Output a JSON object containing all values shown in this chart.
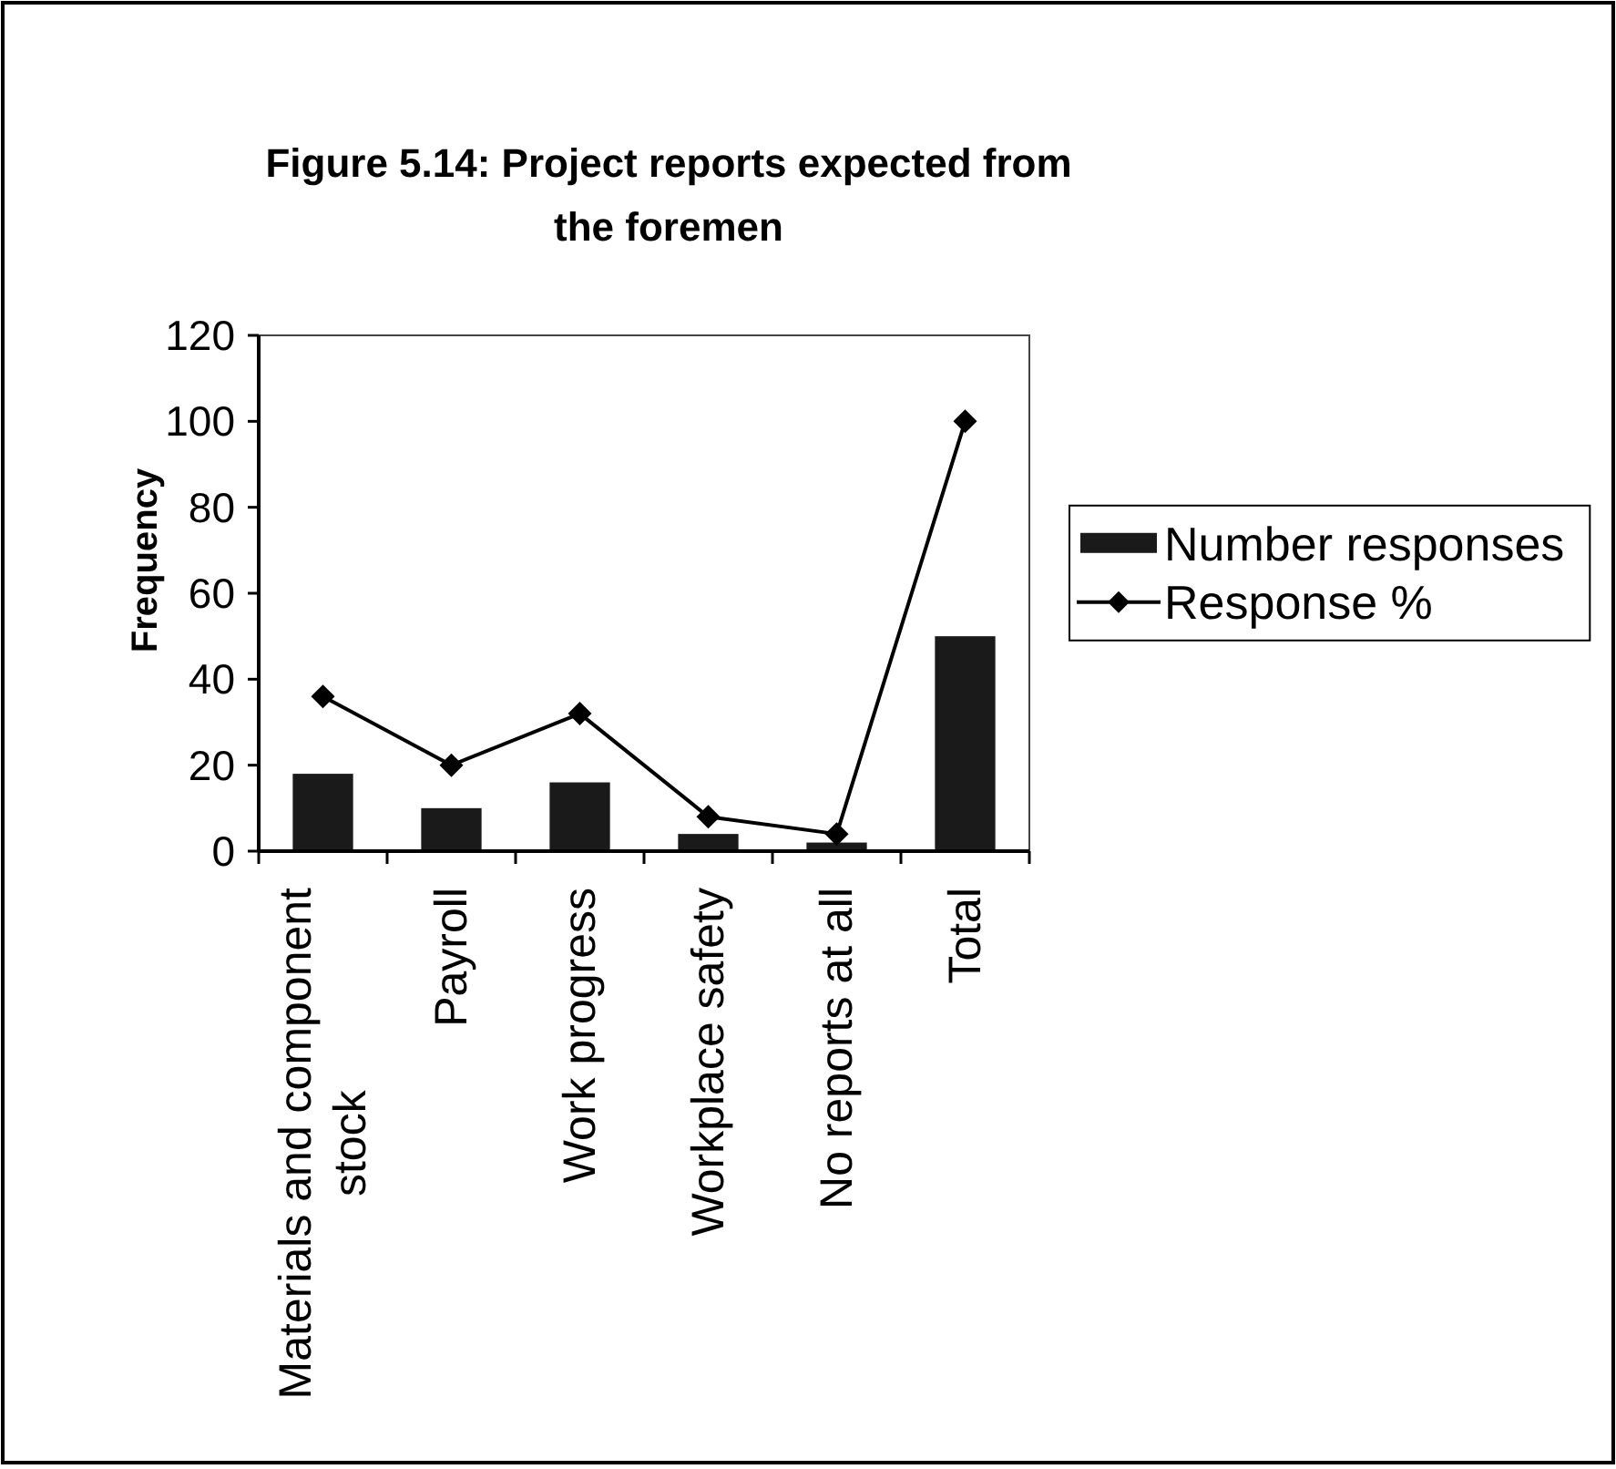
{
  "chart_data": {
    "type": "bar",
    "title": "Figure 5.14: Project reports expected from the foremen",
    "ylabel": "Frequency",
    "categories": [
      "Materials and component stock",
      "Payroll",
      "Work progress",
      "Workplace safety",
      "No reports at all",
      "Total"
    ],
    "series": [
      {
        "name": "Number responses",
        "color": "#1a1a1a",
        "values": [
          18,
          10,
          16,
          4,
          2,
          50
        ]
      },
      {
        "name": "Response %",
        "type": "line",
        "color": "#000000",
        "values": [
          36,
          20,
          32,
          8,
          4,
          100
        ]
      }
    ],
    "marker": "diamond",
    "ylim": [
      0,
      120
    ],
    "yticks": [
      0,
      20,
      40,
      60,
      80,
      100,
      120
    ],
    "legend": "right"
  }
}
